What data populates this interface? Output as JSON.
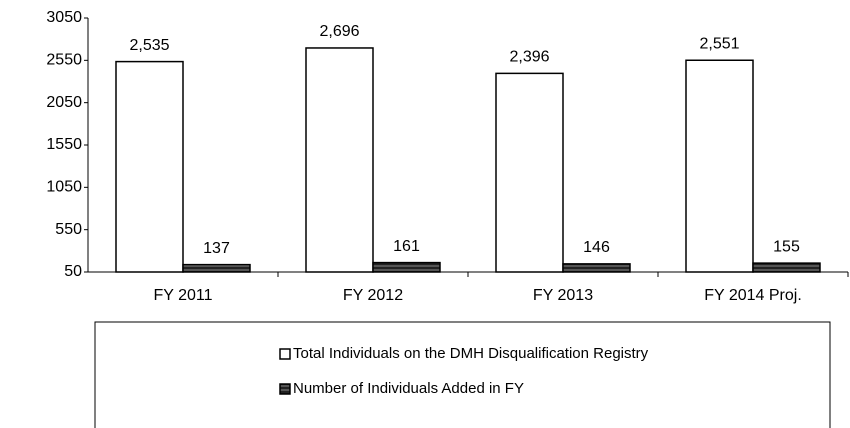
{
  "chart_data": {
    "type": "bar",
    "categories": [
      "FY 2011",
      "FY 2012",
      "FY 2013",
      "FY 2014 Proj."
    ],
    "series": [
      {
        "name": "Total Individuals on the DMH Disqualification Registry",
        "color": "#ffffff",
        "values": [
          2535,
          2696,
          2396,
          2551
        ],
        "value_labels": [
          "2,535",
          "2,696",
          "2,396",
          "2,551"
        ]
      },
      {
        "name": "Number of Individuals Added in FY",
        "color": "#222222",
        "values": [
          137,
          161,
          146,
          155
        ]
      }
    ],
    "ylim": [
      50,
      3050
    ],
    "yticks": [
      50,
      550,
      1050,
      1550,
      2050,
      2550,
      3050
    ],
    "grid": false,
    "legend": "bottom"
  }
}
